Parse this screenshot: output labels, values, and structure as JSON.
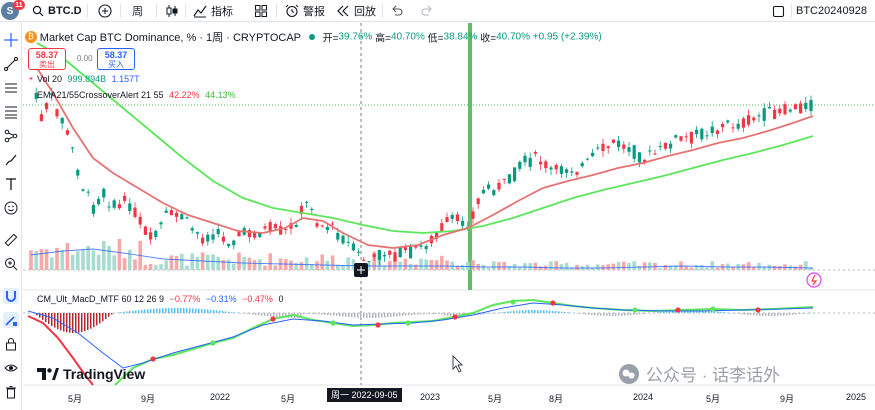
{
  "toolbar": {
    "avatar_letter": "S",
    "avatar_badge": "11",
    "symbol": "BTC.D",
    "interval": "周",
    "indicators_label": "指标",
    "alert_label": "警报",
    "replay_label": "回放",
    "layout_name": "BTC20240928"
  },
  "legend": {
    "logo_letter": "₿",
    "title": "Market Cap BTC Dominance, % · 1周 · CRYPTOCAP",
    "open_label": "开=",
    "open_value": "39.76%",
    "high_label": "高=",
    "high_value": "40.70%",
    "low_label": "低=",
    "low_value": "38.84%",
    "close_label": "收=",
    "close_value": "40.70%",
    "change": "+0.95 (+2.39%)",
    "sell_price": "58.37",
    "sell_label": "卖出",
    "spread": "0.00",
    "buy_price": "58.37",
    "buy_label": "买入",
    "vol_label": "Vol 20",
    "vol_value1": "999.894B",
    "vol_value2": "1.157T",
    "ema_label": "EMA21/55CrossoverAlert 21 55",
    "ema_value1": "42.22%",
    "ema_value2": "44.13%",
    "macd_label": "CM_Ult_MacD_MTF 60 12 26 9",
    "macd_value1": "−0.77%",
    "macd_value2": "−0.31%",
    "macd_value3": "−0.47%",
    "macd_value4": "0"
  },
  "xaxis": {
    "labels": [
      {
        "text": "5月",
        "x": 52
      },
      {
        "text": "9月",
        "x": 125
      },
      {
        "text": "2022",
        "x": 197
      },
      {
        "text": "5月",
        "x": 265
      },
      {
        "text": "2023",
        "x": 407
      },
      {
        "text": "5月",
        "x": 472
      },
      {
        "text": "8月",
        "x": 533
      },
      {
        "text": "2024",
        "x": 620
      },
      {
        "text": "5月",
        "x": 690
      },
      {
        "text": "9月",
        "x": 764
      },
      {
        "text": "2025",
        "x": 833
      }
    ],
    "cursor_label": "周一 2022-09-05"
  },
  "branding": {
    "tv_name": "TradingView",
    "wechat_name": "公众号 · 话李话外"
  },
  "colors": {
    "up": "#089981",
    "down": "#f23645",
    "ema_fast": "#e57373",
    "ema_slow": "#5ce65c",
    "highlight": "#4caf50"
  }
}
